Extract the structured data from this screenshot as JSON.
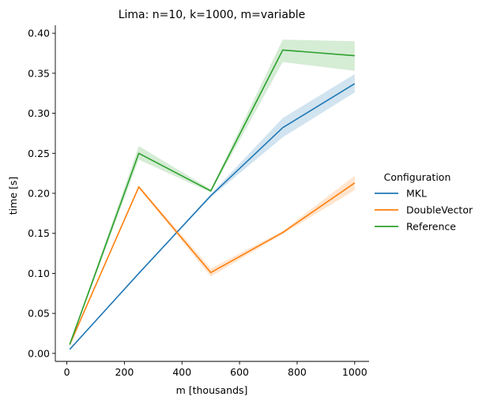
{
  "chart_data": {
    "type": "line",
    "title": "Lima: n=10, k=1000, m=variable",
    "xlabel": "m [thousands]",
    "ylabel": "time [s]",
    "xlim": [
      -40,
      1050
    ],
    "ylim": [
      -0.01,
      0.41
    ],
    "xticks": [
      0,
      200,
      400,
      600,
      800,
      1000
    ],
    "xtick_labels": [
      "0",
      "200",
      "400",
      "600",
      "800",
      "1000"
    ],
    "yticks": [
      0.0,
      0.05,
      0.1,
      0.15,
      0.2,
      0.25,
      0.3,
      0.35,
      0.4
    ],
    "ytick_labels": [
      "0.00",
      "0.05",
      "0.10",
      "0.15",
      "0.20",
      "0.25",
      "0.30",
      "0.35",
      "0.40"
    ],
    "grid": false,
    "legend": {
      "title": "Configuration",
      "placement": "right"
    },
    "x": [
      10,
      250,
      500,
      750,
      1000
    ],
    "series": [
      {
        "name": "MKL",
        "color": "#1f77b4",
        "values": [
          0.005,
          0.1,
          0.197,
          0.282,
          0.337
        ],
        "ci_low": [
          0.005,
          0.1,
          0.195,
          0.27,
          0.326
        ],
        "ci_high": [
          0.005,
          0.1,
          0.199,
          0.294,
          0.349
        ]
      },
      {
        "name": "DoubleVector",
        "color": "#ff7f0e",
        "values": [
          0.011,
          0.208,
          0.101,
          0.151,
          0.213
        ],
        "ci_low": [
          0.01,
          0.206,
          0.096,
          0.149,
          0.204
        ],
        "ci_high": [
          0.012,
          0.21,
          0.106,
          0.153,
          0.222
        ]
      },
      {
        "name": "Reference",
        "color": "#2ca02c",
        "values": [
          0.011,
          0.25,
          0.203,
          0.379,
          0.372
        ],
        "ci_low": [
          0.01,
          0.242,
          0.201,
          0.364,
          0.353
        ],
        "ci_high": [
          0.012,
          0.259,
          0.205,
          0.392,
          0.39
        ]
      }
    ]
  }
}
